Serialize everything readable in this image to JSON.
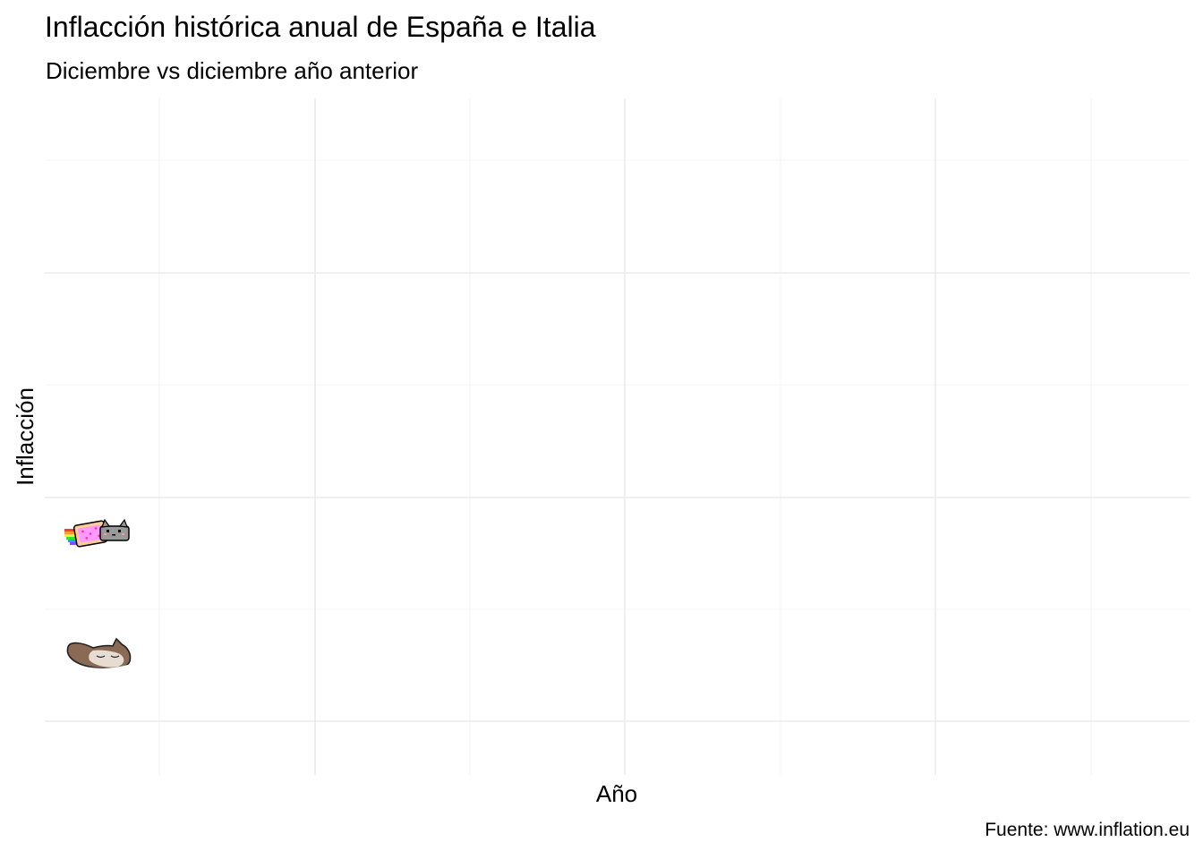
{
  "chart_data": {
    "type": "line",
    "title": "Inflacción histórica anual de España e Italia",
    "subtitle": "Diciembre vs diciembre año anterior",
    "xlabel": "Año",
    "ylabel": "Inflacción",
    "caption": "Fuente: www.inflation.eu",
    "grid": true,
    "x_ticks": [],
    "y_ticks": [],
    "series": [
      {
        "marker_icon": "nyan-cat-icon",
        "x": [],
        "y": []
      },
      {
        "marker_icon": "popcat-icon",
        "x": [],
        "y": []
      }
    ],
    "colors": {
      "background": "#ffffff",
      "grid": "#ebebeb"
    }
  }
}
